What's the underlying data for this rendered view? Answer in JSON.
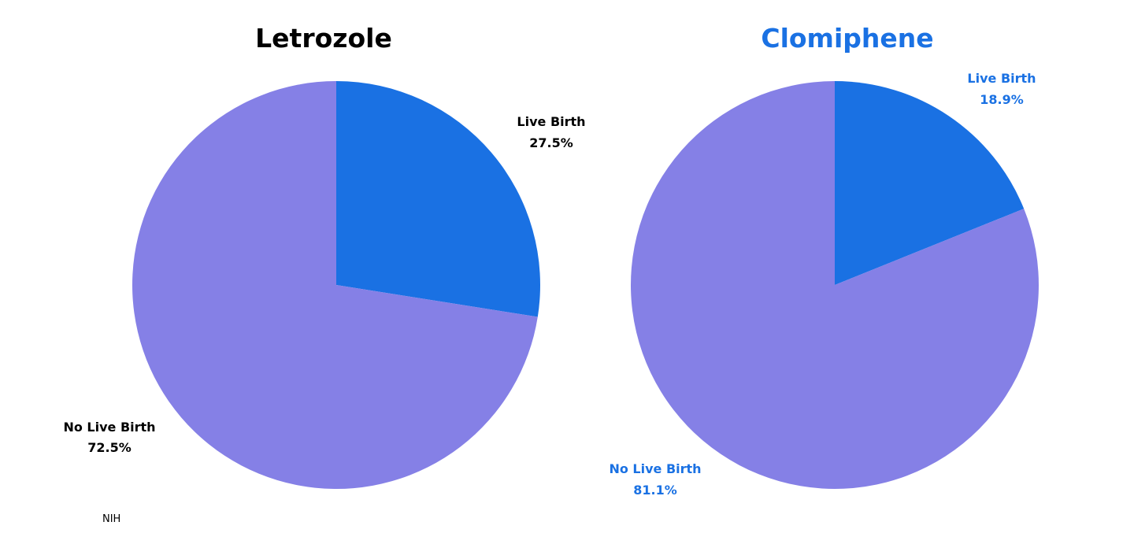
{
  "source": "NIH",
  "colors": {
    "live_birth": "#1A71E3",
    "no_live_birth": "#8580E6",
    "title_letrozole": "#000000",
    "title_clomiphene": "#1A71E3",
    "labels_letrozole": "#000000",
    "labels_clomiphene": "#1A71E3",
    "source": "#000000"
  },
  "chart_data": [
    {
      "type": "pie",
      "title": "Letrozole",
      "slices": [
        {
          "label": "Live Birth",
          "value": 27.5,
          "value_text": "27.5%"
        },
        {
          "label": "No Live Birth",
          "value": 72.5,
          "value_text": "72.5%"
        }
      ]
    },
    {
      "type": "pie",
      "title": "Clomiphene",
      "slices": [
        {
          "label": "Live Birth",
          "value": 18.9,
          "value_text": "18.9%"
        },
        {
          "label": "No Live Birth",
          "value": 81.1,
          "value_text": "81.1%"
        }
      ]
    }
  ]
}
